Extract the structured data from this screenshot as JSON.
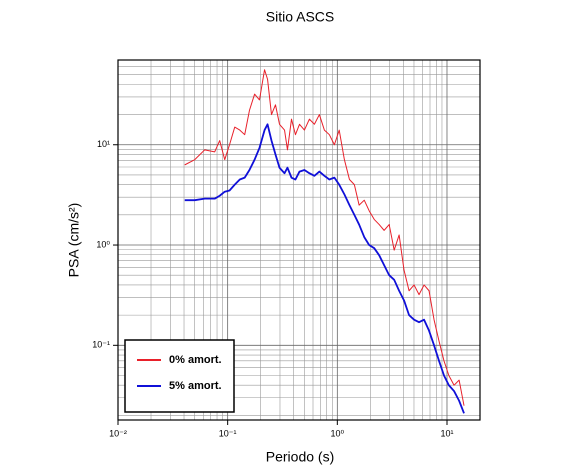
{
  "chart_data": {
    "type": "line",
    "title": "Sitio ASCS",
    "x_label": "Periodo (s)",
    "y_label": "PSA (cm/s²)",
    "xscale": "log",
    "yscale": "log",
    "grid": true,
    "legend": "lower left",
    "xlim": [
      0.01,
      20
    ],
    "ylim": [
      0.018,
      70
    ],
    "xticks": [
      {
        "value": 0.01,
        "label": "10⁻²"
      },
      {
        "value": 0.1,
        "label": "10⁻¹"
      },
      {
        "value": 1,
        "label": "10⁰"
      },
      {
        "value": 10,
        "label": "10¹"
      }
    ],
    "yticks": [
      {
        "value": 0.1,
        "label": "10⁻¹"
      },
      {
        "value": 1,
        "label": "10⁰"
      },
      {
        "value": 10,
        "label": "10¹"
      }
    ],
    "xminorticks": [
      0.02,
      0.03,
      0.04,
      0.05,
      0.06,
      0.07,
      0.08,
      0.09,
      0.2,
      0.3,
      0.4,
      0.5,
      0.6,
      0.7,
      0.8,
      0.9,
      2,
      3,
      4,
      5,
      6,
      7,
      8,
      9
    ],
    "yminorticks": [
      0.02,
      0.03,
      0.04,
      0.05,
      0.06,
      0.07,
      0.08,
      0.09,
      0.2,
      0.3,
      0.4,
      0.5,
      0.6,
      0.7,
      0.8,
      0.9,
      2,
      3,
      4,
      5,
      6,
      7,
      8,
      9,
      20,
      30,
      40,
      50,
      60,
      70
    ],
    "x": [
      0.0406,
      0.0501,
      0.0618,
      0.0762,
      0.0846,
      0.094,
      0.104,
      0.116,
      0.129,
      0.143,
      0.158,
      0.176,
      0.195,
      0.217,
      0.231,
      0.251,
      0.273,
      0.297,
      0.33,
      0.351,
      0.382,
      0.415,
      0.452,
      0.501,
      0.556,
      0.618,
      0.686,
      0.762,
      0.846,
      0.94,
      1.04,
      1.16,
      1.29,
      1.43,
      1.58,
      1.76,
      1.95,
      2.17,
      2.41,
      2.67,
      2.97,
      3.3,
      3.66,
      4.06,
      4.51,
      5.01,
      5.56,
      6.18,
      6.86,
      7.62,
      8.46,
      9.39,
      10.4,
      11.6,
      12.9,
      14.3
    ],
    "series": [
      {
        "name": "0% amort.",
        "color": "#e8202a",
        "width": 1,
        "values": [
          6.3,
          7.1,
          8.9,
          8.5,
          11,
          7.1,
          10,
          15,
          14,
          12.6,
          22,
          32,
          28,
          56,
          45,
          20,
          25,
          16,
          14,
          8.9,
          18,
          12.6,
          16,
          14,
          18,
          16,
          20,
          14,
          12.6,
          10,
          14,
          7.1,
          4.5,
          4.0,
          2.5,
          2.8,
          2.2,
          1.8,
          1.6,
          1.4,
          1.6,
          0.89,
          1.26,
          0.56,
          0.35,
          0.4,
          0.32,
          0.4,
          0.35,
          0.18,
          0.11,
          0.07,
          0.05,
          0.04,
          0.045,
          0.025
        ]
      },
      {
        "name": "5% amort.",
        "color": "#1010d8",
        "width": 1.8,
        "values": [
          2.8,
          2.8,
          2.9,
          2.9,
          3.1,
          3.4,
          3.5,
          4.0,
          4.5,
          4.7,
          5.6,
          7.1,
          9.3,
          14,
          16,
          11,
          8,
          5.9,
          5.2,
          5.9,
          4.7,
          4.5,
          5.4,
          5.6,
          5.2,
          4.9,
          5.4,
          4.9,
          4.5,
          4.7,
          4.0,
          3.2,
          2.5,
          2.0,
          1.6,
          1.2,
          1.0,
          0.93,
          0.79,
          0.63,
          0.5,
          0.45,
          0.35,
          0.28,
          0.2,
          0.18,
          0.17,
          0.18,
          0.14,
          0.1,
          0.07,
          0.05,
          0.04,
          0.035,
          0.028,
          0.021
        ]
      }
    ]
  }
}
